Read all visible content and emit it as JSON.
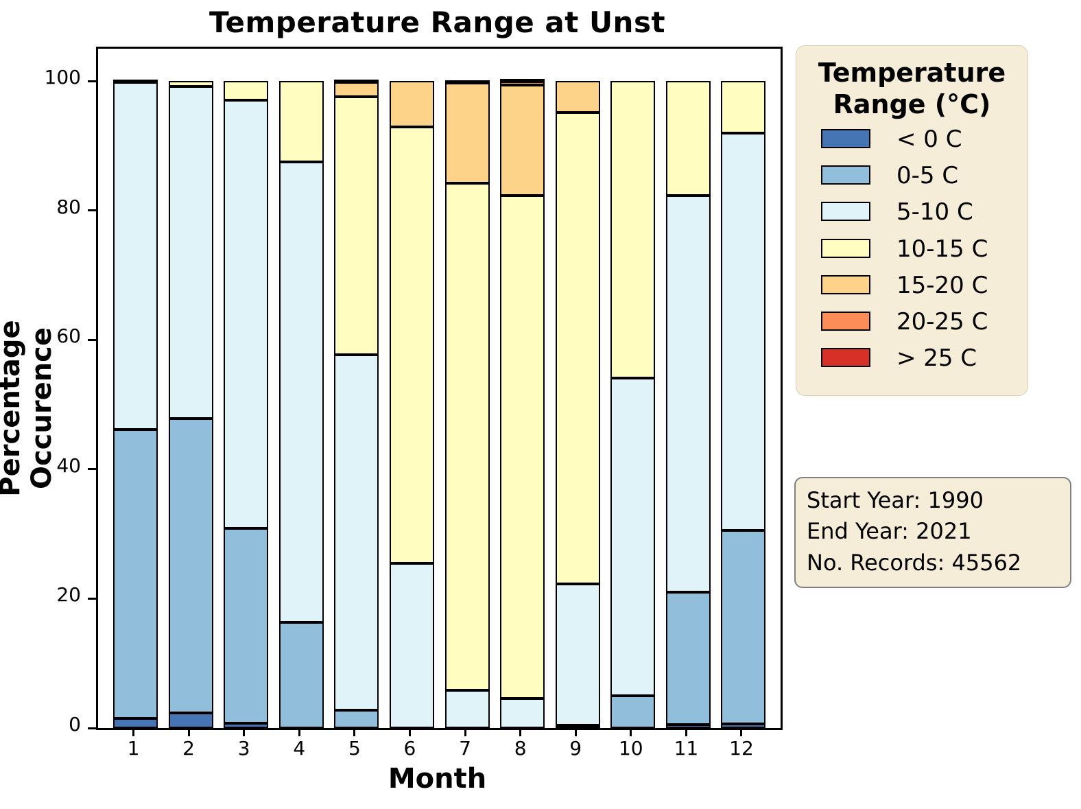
{
  "title": "Temperature Range at Unst",
  "chart_data": {
    "type": "bar",
    "stacked": true,
    "orientation": "vertical",
    "title": "Temperature Range at Unst",
    "xlabel": "Month",
    "ylabel": "Percentage Occurence",
    "categories": [
      "1",
      "2",
      "3",
      "4",
      "5",
      "6",
      "7",
      "8",
      "9",
      "10",
      "11",
      "12"
    ],
    "yticks": [
      0,
      20,
      40,
      60,
      80,
      100
    ],
    "ylim": [
      0,
      105
    ],
    "grid": false,
    "legend_position": "right-of-plot",
    "series": [
      {
        "name": "< 0 C",
        "color": "#4575b4",
        "values": [
          1.5,
          2.3,
          0.7,
          0.0,
          0.0,
          0.0,
          0.0,
          0.0,
          0.0,
          0.0,
          0.5,
          0.6
        ]
      },
      {
        "name": "0-5 C",
        "color": "#91bfdb",
        "values": [
          44.6,
          45.5,
          30.2,
          16.3,
          2.8,
          0.0,
          0.0,
          0.0,
          0.4,
          5.0,
          20.5,
          29.9
        ]
      },
      {
        "name": "5-10 C",
        "color": "#e0f3f8",
        "values": [
          53.7,
          51.4,
          66.2,
          71.2,
          54.9,
          25.5,
          5.8,
          4.6,
          21.9,
          49.1,
          61.3,
          61.5
        ]
      },
      {
        "name": "10-15 C",
        "color": "#fffdbf",
        "values": [
          0.2,
          0.8,
          2.9,
          12.5,
          39.9,
          67.4,
          78.4,
          77.7,
          72.8,
          45.9,
          17.7,
          8.0
        ]
      },
      {
        "name": "15-20 C",
        "color": "#fdd389",
        "values": [
          0.0,
          0.0,
          0.0,
          0.0,
          2.2,
          7.1,
          15.5,
          17.1,
          4.9,
          0.0,
          0.0,
          0.0
        ]
      },
      {
        "name": "20-25 C",
        "color": "#fc8d59",
        "values": [
          0.0,
          0.0,
          0.0,
          0.0,
          0.2,
          0.0,
          0.3,
          0.5,
          0.0,
          0.0,
          0.0,
          0.0
        ]
      },
      {
        "name": "> 25 C",
        "color": "#d73027",
        "values": [
          0.0,
          0.0,
          0.0,
          0.0,
          0.0,
          0.0,
          0.0,
          0.1,
          0.0,
          0.0,
          0.0,
          0.0
        ]
      }
    ]
  },
  "legend": {
    "title_line1": "Temperature",
    "title_line2": "Range (°C)"
  },
  "info_box": {
    "line1": "Start Year: 1990",
    "line2": "End Year: 2021",
    "line3": "No. Records: 45562"
  }
}
